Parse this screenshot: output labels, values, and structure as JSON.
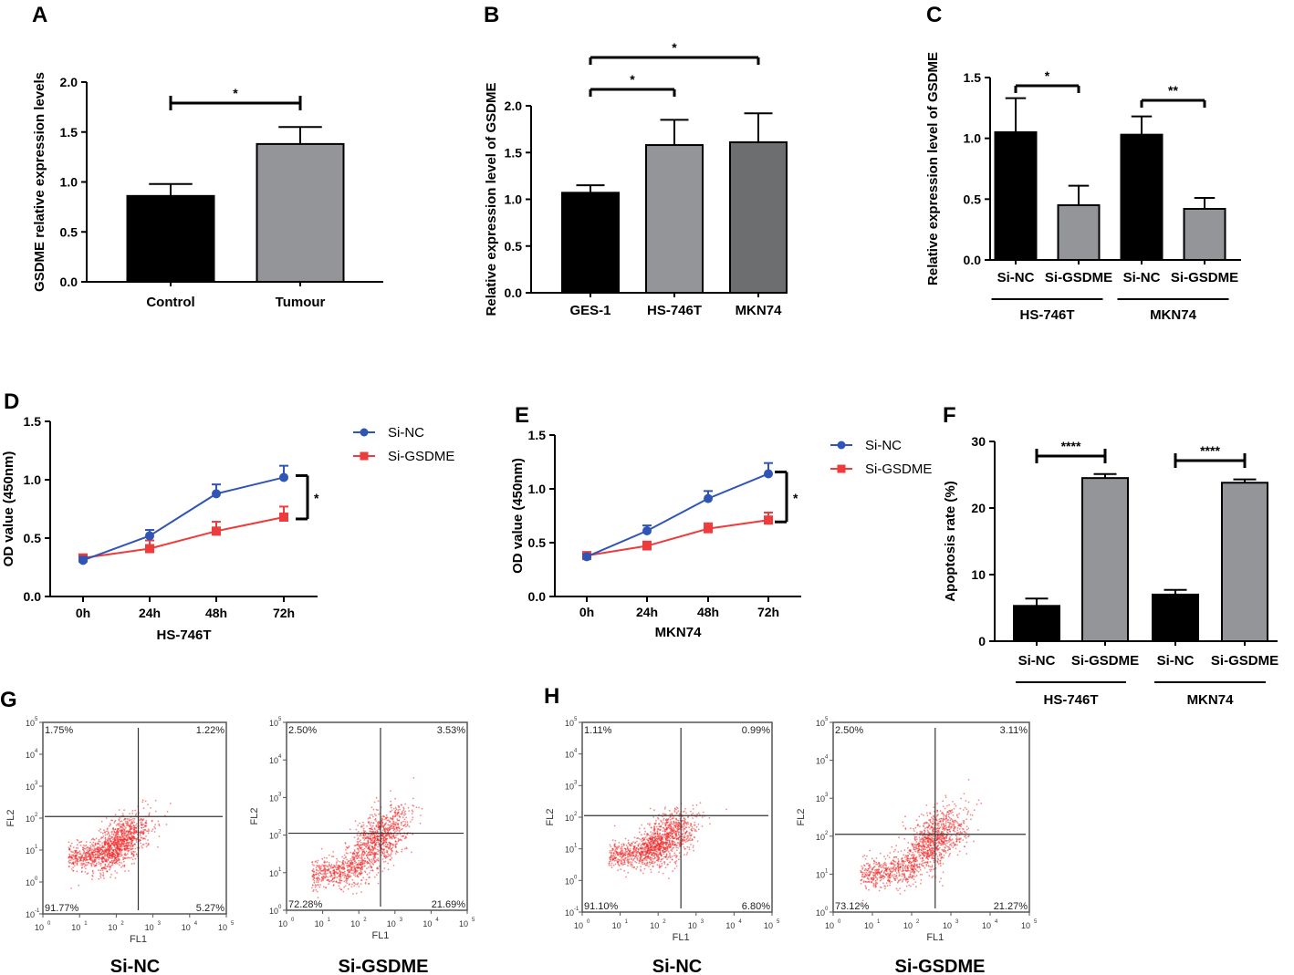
{
  "chart_data": [
    {
      "panel_label": "A",
      "type": "bar",
      "categories": [
        "Control",
        "Tumour"
      ],
      "values": [
        0.86,
        1.38
      ],
      "errors": [
        0.12,
        0.17
      ],
      "colors": [
        "#000000",
        "#939598"
      ],
      "ylabel": "GSDME relative expression levels",
      "ylim": [
        0,
        2
      ],
      "yticks": [
        "0.0",
        "0.5",
        "1.0",
        "1.5",
        "2.0"
      ],
      "significance": [
        {
          "between": [
            0,
            1
          ],
          "label": "*"
        }
      ]
    },
    {
      "panel_label": "B",
      "type": "bar",
      "categories": [
        "GES-1",
        "HS-746T",
        "MKN74"
      ],
      "values": [
        1.07,
        1.58,
        1.61
      ],
      "errors": [
        0.08,
        0.27,
        0.31
      ],
      "colors": [
        "#000000",
        "#939598",
        "#6d6e70"
      ],
      "ylabel": "Relative expression level of GSDME",
      "ylim": [
        0,
        2
      ],
      "yticks": [
        "0.0",
        "0.5",
        "1.0",
        "1.5",
        "2.0"
      ],
      "significance": [
        {
          "between": [
            0,
            1
          ],
          "label": "*"
        },
        {
          "between": [
            0,
            2
          ],
          "label": "*"
        }
      ]
    },
    {
      "panel_label": "C",
      "type": "bar",
      "categories": [
        "Si-NC",
        "Si-GSDME",
        "Si-NC",
        "Si-GSDME"
      ],
      "values": [
        1.05,
        0.45,
        1.03,
        0.42
      ],
      "errors": [
        0.28,
        0.16,
        0.15,
        0.09
      ],
      "colors": [
        "#000000",
        "#939598",
        "#000000",
        "#939598"
      ],
      "groups": [
        {
          "label": "HS-746T",
          "members": [
            0,
            1
          ]
        },
        {
          "label": "MKN74",
          "members": [
            2,
            3
          ]
        }
      ],
      "ylabel": "Relative expression level of GSDME",
      "ylim": [
        0,
        1.5
      ],
      "yticks": [
        "0.0",
        "0.5",
        "1.0",
        "1.5"
      ],
      "significance": [
        {
          "between": [
            0,
            1
          ],
          "label": "*"
        },
        {
          "between": [
            2,
            3
          ],
          "label": "**"
        }
      ]
    },
    {
      "panel_label": "D",
      "type": "line",
      "x": [
        "0h",
        "24h",
        "48h",
        "72h"
      ],
      "xlabel": "HS-746T",
      "ylabel": "OD value (450nm)",
      "ylim": [
        0,
        1.5
      ],
      "yticks": [
        "0.0",
        "0.5",
        "1.0",
        "1.5"
      ],
      "series": [
        {
          "name": "Si-NC",
          "color": "#2f55b5",
          "marker": "circle",
          "values": [
            0.31,
            0.52,
            0.88,
            1.02
          ],
          "errors": [
            0.03,
            0.05,
            0.08,
            0.1
          ]
        },
        {
          "name": "Si-GSDME",
          "color": "#ee3b3b",
          "marker": "square",
          "values": [
            0.33,
            0.41,
            0.56,
            0.68
          ],
          "errors": [
            0.03,
            0.07,
            0.08,
            0.09
          ]
        }
      ],
      "significance": {
        "label": "*"
      },
      "legend": "right"
    },
    {
      "panel_label": "E",
      "type": "line",
      "x": [
        "0h",
        "24h",
        "48h",
        "72h"
      ],
      "xlabel": "MKN74",
      "ylabel": "OD value (450nm)",
      "ylim": [
        0,
        1.5
      ],
      "yticks": [
        "0.0",
        "0.5",
        "1.0",
        "1.5"
      ],
      "series": [
        {
          "name": "Si-NC",
          "color": "#2f55b5",
          "marker": "circle",
          "values": [
            0.37,
            0.61,
            0.91,
            1.14
          ],
          "errors": [
            0.02,
            0.05,
            0.07,
            0.1
          ]
        },
        {
          "name": "Si-GSDME",
          "color": "#ee3b3b",
          "marker": "square",
          "values": [
            0.38,
            0.47,
            0.63,
            0.71
          ],
          "errors": [
            0.02,
            0.04,
            0.05,
            0.07
          ]
        }
      ],
      "significance": {
        "label": "*"
      },
      "legend": "right"
    },
    {
      "panel_label": "F",
      "type": "bar",
      "categories": [
        "Si-NC",
        "Si-GSDME",
        "Si-NC",
        "Si-GSDME"
      ],
      "values": [
        5.3,
        24.5,
        7.0,
        23.8
      ],
      "errors": [
        1.1,
        0.6,
        0.7,
        0.5
      ],
      "colors": [
        "#000000",
        "#939598",
        "#000000",
        "#939598"
      ],
      "groups": [
        {
          "label": "HS-746T",
          "members": [
            0,
            1
          ]
        },
        {
          "label": "MKN74",
          "members": [
            2,
            3
          ]
        }
      ],
      "ylabel": "Apoptosis rate (%)",
      "ylim": [
        0,
        30
      ],
      "yticks": [
        "0",
        "10",
        "20",
        "30"
      ],
      "significance": [
        {
          "between": [
            0,
            1
          ],
          "label": "****"
        },
        {
          "between": [
            2,
            3
          ],
          "label": "****"
        }
      ]
    },
    {
      "panel_label": "G",
      "type": "scatter",
      "title": "Si-NC",
      "xlabel": "FL1",
      "ylabel": "FL2",
      "tick_base": "10",
      "xticks": [
        "0",
        "1",
        "2",
        "3",
        "4",
        "5"
      ],
      "yticks": [
        "-1",
        "0",
        "1",
        "2",
        "3",
        "4",
        "5"
      ],
      "quadrants": {
        "upper_left": "1.75%",
        "upper_right": "1.22%",
        "lower_left": "91.77%",
        "lower_right": "5.27%"
      }
    },
    {
      "panel_label": "",
      "type": "scatter",
      "title": "Si-GSDME",
      "xlabel": "FL1",
      "ylabel": "FL2",
      "tick_base": "10",
      "xticks": [
        "0",
        "1",
        "2",
        "3",
        "4",
        "5"
      ],
      "yticks": [
        "0",
        "1",
        "2",
        "3",
        "4",
        "5"
      ],
      "quadrants": {
        "upper_left": "2.50%",
        "upper_right": "3.53%",
        "lower_left": "72.28%",
        "lower_right": "21.69%"
      }
    },
    {
      "panel_label": "H",
      "type": "scatter",
      "title": "Si-NC",
      "xlabel": "FL1",
      "ylabel": "FL2",
      "tick_base": "10",
      "xticks": [
        "0",
        "1",
        "2",
        "3",
        "4",
        "5"
      ],
      "yticks": [
        "-1",
        "0",
        "1",
        "2",
        "3",
        "4",
        "5"
      ],
      "quadrants": {
        "upper_left": "1.11%",
        "upper_right": "0.99%",
        "lower_left": "91.10%",
        "lower_right": "6.80%"
      }
    },
    {
      "panel_label": "",
      "type": "scatter",
      "title": "Si-GSDME",
      "xlabel": "FL1",
      "ylabel": "FL2",
      "tick_base": "10",
      "xticks": [
        "0",
        "1",
        "2",
        "3",
        "4",
        "5"
      ],
      "yticks": [
        "0",
        "1",
        "2",
        "3",
        "4",
        "5"
      ],
      "quadrants": {
        "upper_left": "2.50%",
        "upper_right": "3.11%",
        "lower_left": "73.12%",
        "lower_right": "21.27%"
      }
    }
  ]
}
